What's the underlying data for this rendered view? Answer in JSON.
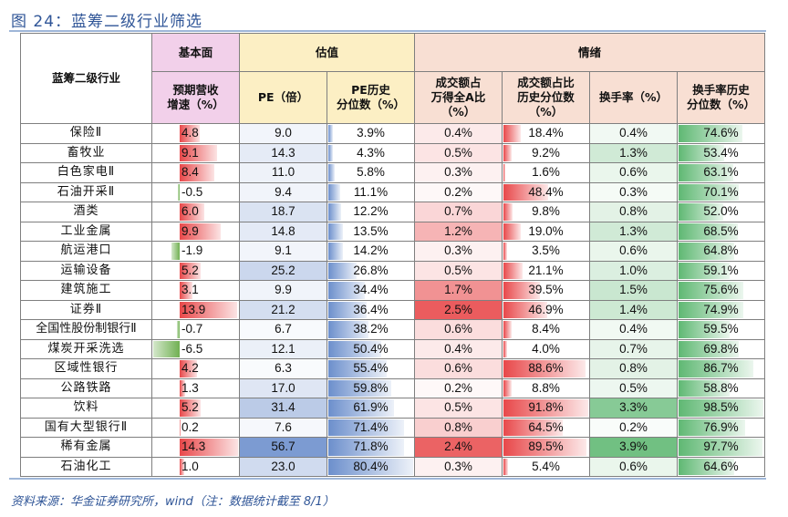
{
  "title": "图 24：蓝筹二级行业筛选",
  "source": "资料来源：华金证券研究所，wind（注：数据统计截至 8/1）",
  "colors": {
    "pink_header": "#f2d0ea",
    "yellow_header": "#fcefc4",
    "peach_header": "#f8dfd3",
    "red": "#e8484a",
    "blue": "#6c8fcc",
    "green": "#5fb873",
    "neg_green": "#70b052"
  },
  "header": {
    "industry": "蓝筹二级行业",
    "groups": [
      "基本面",
      "估值",
      "情绪"
    ],
    "columns": [
      "预期营收\n增速（%）",
      "PE（倍）",
      "PE历史\n分位数（%）",
      "成交额占\n万得全A比\n（%）",
      "成交额占比\n历史分位数\n（%）",
      "换手率（%）",
      "换手率历史\n分位数（%）"
    ]
  },
  "rows": [
    {
      "name": "保险Ⅱ",
      "growth": "4.8",
      "pe": "9.0",
      "pe_pct": "3.9%",
      "amt_share": "0.4%",
      "amt_pct": "18.4%",
      "turnover": "0.4%",
      "turnover_pct": "74.6%"
    },
    {
      "name": "畜牧业",
      "growth": "9.1",
      "pe": "14.3",
      "pe_pct": "4.3%",
      "amt_share": "0.5%",
      "amt_pct": "9.2%",
      "turnover": "1.3%",
      "turnover_pct": "53.4%"
    },
    {
      "name": "白色家电Ⅱ",
      "growth": "8.4",
      "pe": "11.0",
      "pe_pct": "5.8%",
      "amt_share": "0.3%",
      "amt_pct": "1.6%",
      "turnover": "0.6%",
      "turnover_pct": "63.1%"
    },
    {
      "name": "石油开采Ⅱ",
      "growth": "-0.5",
      "pe": "9.4",
      "pe_pct": "11.1%",
      "amt_share": "0.2%",
      "amt_pct": "48.4%",
      "turnover": "0.3%",
      "turnover_pct": "70.1%"
    },
    {
      "name": "酒类",
      "growth": "6.0",
      "pe": "18.7",
      "pe_pct": "12.2%",
      "amt_share": "0.7%",
      "amt_pct": "9.8%",
      "turnover": "0.8%",
      "turnover_pct": "52.0%"
    },
    {
      "name": "工业金属",
      "growth": "9.9",
      "pe": "14.8",
      "pe_pct": "13.5%",
      "amt_share": "1.2%",
      "amt_pct": "19.0%",
      "turnover": "1.3%",
      "turnover_pct": "68.5%"
    },
    {
      "name": "航运港口",
      "growth": "-1.9",
      "pe": "9.1",
      "pe_pct": "14.2%",
      "amt_share": "0.3%",
      "amt_pct": "3.5%",
      "turnover": "0.6%",
      "turnover_pct": "64.8%"
    },
    {
      "name": "运输设备",
      "growth": "5.2",
      "pe": "25.2",
      "pe_pct": "26.8%",
      "amt_share": "0.5%",
      "amt_pct": "21.1%",
      "turnover": "1.0%",
      "turnover_pct": "59.1%"
    },
    {
      "name": "建筑施工",
      "growth": "3.1",
      "pe": "9.9",
      "pe_pct": "34.4%",
      "amt_share": "1.7%",
      "amt_pct": "39.5%",
      "turnover": "1.5%",
      "turnover_pct": "75.6%"
    },
    {
      "name": "证券Ⅱ",
      "growth": "13.9",
      "pe": "21.2",
      "pe_pct": "36.4%",
      "amt_share": "2.5%",
      "amt_pct": "46.9%",
      "turnover": "1.4%",
      "turnover_pct": "74.9%"
    },
    {
      "name": "全国性股份制银行Ⅱ",
      "growth": "-0.7",
      "pe": "6.7",
      "pe_pct": "38.2%",
      "amt_share": "0.6%",
      "amt_pct": "8.4%",
      "turnover": "0.4%",
      "turnover_pct": "59.5%"
    },
    {
      "name": "煤炭开采洗选",
      "growth": "-6.5",
      "pe": "12.1",
      "pe_pct": "50.4%",
      "amt_share": "0.4%",
      "amt_pct": "4.0%",
      "turnover": "0.7%",
      "turnover_pct": "69.8%"
    },
    {
      "name": "区域性银行",
      "growth": "4.2",
      "pe": "6.3",
      "pe_pct": "55.4%",
      "amt_share": "0.6%",
      "amt_pct": "88.6%",
      "turnover": "0.8%",
      "turnover_pct": "86.7%"
    },
    {
      "name": "公路铁路",
      "growth": "1.3",
      "pe": "17.0",
      "pe_pct": "59.8%",
      "amt_share": "0.2%",
      "amt_pct": "8.8%",
      "turnover": "0.5%",
      "turnover_pct": "58.8%"
    },
    {
      "name": "饮料",
      "growth": "5.2",
      "pe": "31.4",
      "pe_pct": "61.9%",
      "amt_share": "0.5%",
      "amt_pct": "91.8%",
      "turnover": "3.3%",
      "turnover_pct": "98.5%"
    },
    {
      "name": "国有大型银行Ⅱ",
      "growth": "0.2",
      "pe": "7.6",
      "pe_pct": "71.4%",
      "amt_share": "0.8%",
      "amt_pct": "64.5%",
      "turnover": "0.2%",
      "turnover_pct": "76.9%"
    },
    {
      "name": "稀有金属",
      "growth": "14.3",
      "pe": "56.7",
      "pe_pct": "71.8%",
      "amt_share": "2.4%",
      "amt_pct": "89.5%",
      "turnover": "3.9%",
      "turnover_pct": "97.7%"
    },
    {
      "name": "石油化工",
      "growth": "1.0",
      "pe": "23.0",
      "pe_pct": "80.4%",
      "amt_share": "0.3%",
      "amt_pct": "5.4%",
      "turnover": "0.6%",
      "turnover_pct": "64.6%"
    }
  ]
}
